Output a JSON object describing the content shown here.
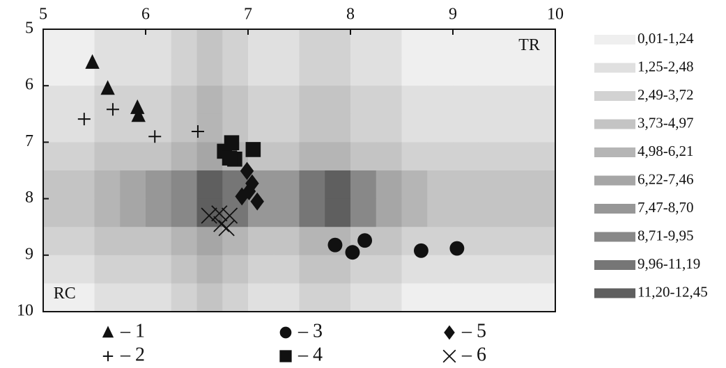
{
  "chart_data": {
    "type": "scatter",
    "xlim": [
      5,
      10
    ],
    "ylim": [
      5,
      10
    ],
    "y_inverted": true,
    "x_axis_position": "top",
    "xticks": [
      5,
      6,
      7,
      8,
      9,
      10
    ],
    "yticks": [
      5,
      6,
      7,
      8,
      9,
      10
    ],
    "annotations": [
      {
        "text": "TR",
        "x": 9.85,
        "y": 5.3
      },
      {
        "text": "RC",
        "x": 5.1,
        "y": 9.7
      }
    ],
    "heatmap": {
      "xbins": [
        5,
        5.25,
        5.5,
        5.75,
        6,
        6.25,
        6.5,
        6.75,
        7,
        7.25,
        7.5,
        7.75,
        8,
        8.25,
        8.5,
        8.75,
        9,
        9.25,
        9.5,
        9.75,
        10
      ],
      "ybins": [
        5,
        5.5,
        6,
        6.5,
        7,
        7.5,
        8,
        8.5,
        9,
        9.5,
        10
      ],
      "z": [
        [
          0.6,
          0.6,
          1.9,
          1.9,
          1.9,
          3.1,
          4.3,
          3.1,
          1.9,
          1.9,
          3.1,
          3.1,
          1.9,
          1.9,
          0.6,
          0.6,
          0.6,
          0.6,
          0.6,
          0.6
        ],
        [
          0.6,
          0.6,
          1.9,
          1.9,
          1.9,
          3.1,
          4.3,
          3.1,
          1.9,
          1.9,
          3.1,
          3.1,
          1.9,
          1.9,
          0.6,
          0.6,
          0.6,
          0.6,
          0.6,
          0.6
        ],
        [
          1.9,
          1.9,
          3.1,
          3.1,
          3.1,
          4.3,
          5.6,
          4.3,
          3.1,
          3.1,
          4.3,
          4.3,
          3.1,
          3.1,
          1.9,
          1.9,
          1.9,
          1.9,
          1.9,
          1.9
        ],
        [
          1.9,
          1.9,
          3.1,
          3.1,
          3.1,
          4.3,
          5.6,
          4.3,
          3.1,
          3.1,
          4.3,
          4.3,
          3.1,
          3.1,
          1.9,
          1.9,
          1.9,
          1.9,
          1.9,
          1.9
        ],
        [
          3.1,
          3.1,
          4.3,
          4.3,
          4.3,
          5.6,
          6.8,
          5.6,
          4.3,
          4.3,
          5.6,
          5.6,
          4.3,
          4.3,
          3.1,
          3.1,
          3.1,
          3.1,
          3.1,
          3.1
        ],
        [
          4.3,
          4.3,
          5.6,
          6.8,
          8.1,
          9.3,
          11.8,
          10.6,
          8.1,
          8.1,
          10.6,
          11.8,
          9.3,
          6.8,
          5.6,
          4.3,
          4.3,
          4.3,
          4.3,
          4.3
        ],
        [
          4.3,
          4.3,
          5.6,
          6.8,
          8.1,
          9.3,
          11.8,
          10.6,
          8.1,
          8.1,
          10.6,
          11.8,
          9.3,
          6.8,
          5.6,
          4.3,
          4.3,
          4.3,
          4.3,
          4.3
        ],
        [
          3.1,
          3.1,
          4.3,
          4.3,
          4.3,
          5.6,
          6.8,
          5.6,
          4.3,
          4.3,
          5.6,
          5.6,
          4.3,
          4.3,
          3.1,
          3.1,
          3.1,
          3.1,
          3.1,
          3.1
        ],
        [
          1.9,
          1.9,
          3.1,
          3.1,
          3.1,
          4.3,
          5.6,
          4.3,
          3.1,
          3.1,
          4.3,
          4.3,
          3.1,
          3.1,
          1.9,
          1.9,
          1.9,
          1.9,
          1.9,
          1.9
        ],
        [
          0.6,
          0.6,
          1.9,
          1.9,
          1.9,
          3.1,
          4.3,
          3.1,
          1.9,
          1.9,
          3.1,
          3.1,
          1.9,
          1.9,
          0.6,
          0.6,
          0.6,
          0.6,
          0.6,
          0.6
        ]
      ]
    },
    "legend_levels": [
      {
        "min": 0.01,
        "max": 1.24,
        "label": "0,01-1,24",
        "color": "#efefef"
      },
      {
        "min": 1.25,
        "max": 2.48,
        "label": "1,25-2,48",
        "color": "#e0e0e0"
      },
      {
        "min": 2.49,
        "max": 3.72,
        "label": "2,49-3,72",
        "color": "#d2d2d2"
      },
      {
        "min": 3.73,
        "max": 4.97,
        "label": "3,73-4,97",
        "color": "#c4c4c4"
      },
      {
        "min": 4.98,
        "max": 6.21,
        "label": "4,98-6,21",
        "color": "#b5b5b5"
      },
      {
        "min": 6.22,
        "max": 7.46,
        "label": "6,22-7,46",
        "color": "#a6a6a6"
      },
      {
        "min": 7.47,
        "max": 8.7,
        "label": "7,47-8,70",
        "color": "#979797"
      },
      {
        "min": 8.71,
        "max": 9.95,
        "label": "8,71-9,95",
        "color": "#888888"
      },
      {
        "min": 9.96,
        "max": 11.19,
        "label": "9,96-11,19",
        "color": "#767676"
      },
      {
        "min": 11.2,
        "max": 12.45,
        "label": "11,20-12,45",
        "color": "#5f5f5f"
      }
    ],
    "series": [
      {
        "name": "– 1",
        "marker": "triangle",
        "color": "#111111",
        "x": [
          5.48,
          5.63,
          5.92,
          5.93
        ],
        "y": [
          5.59,
          6.05,
          6.39,
          6.53
        ]
      },
      {
        "name": "– 2",
        "marker": "plus",
        "color": "#111111",
        "x": [
          5.4,
          5.68,
          6.09,
          6.51
        ],
        "y": [
          6.59,
          6.42,
          6.9,
          6.81
        ]
      },
      {
        "name": "– 3",
        "marker": "circle",
        "color": "#111111",
        "x": [
          7.85,
          8.02,
          8.14,
          8.69,
          9.04
        ],
        "y": [
          8.82,
          8.95,
          8.74,
          8.92,
          8.88
        ]
      },
      {
        "name": "– 4",
        "marker": "square",
        "color": "#111111",
        "x": [
          6.77,
          6.84,
          6.87,
          7.05,
          6.82
        ],
        "y": [
          7.16,
          7.01,
          7.3,
          7.13,
          7.28
        ]
      },
      {
        "name": "– 5",
        "marker": "diamond",
        "color": "#111111",
        "x": [
          6.99,
          7.04,
          7.01,
          6.94,
          7.09
        ],
        "y": [
          7.51,
          7.73,
          7.87,
          7.96,
          8.05
        ]
      },
      {
        "name": "– 6",
        "marker": "x",
        "color": "#111111",
        "x": [
          6.62,
          6.74,
          6.82,
          6.79,
          6.72
        ],
        "y": [
          8.3,
          8.45,
          8.3,
          8.52,
          8.26
        ]
      }
    ]
  }
}
